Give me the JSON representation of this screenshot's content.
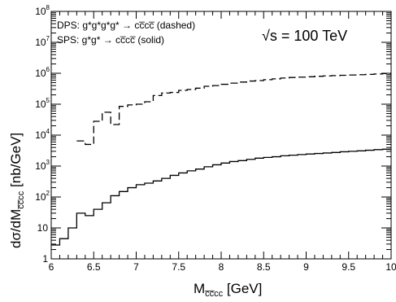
{
  "chart_data": {
    "type": "line",
    "title": "",
    "xlabel": {
      "main": "M",
      "sub": "c̅c̅cc",
      "unit": "[GeV]"
    },
    "ylabel": {
      "main": "dσ/dM",
      "sub": "c̅c̅cc",
      "unit": "[nb/GeV]"
    },
    "xlim": [
      6,
      10
    ],
    "ylim": [
      1,
      100000000
    ],
    "yscale": "log",
    "x_ticks": [
      "6",
      "6.5",
      "7",
      "7.5",
      "8",
      "8.5",
      "9",
      "9.5",
      "10"
    ],
    "y_ticks": [
      {
        "base": "1",
        "exp": ""
      },
      {
        "base": "10",
        "exp": ""
      },
      {
        "base": "10",
        "exp": "2"
      },
      {
        "base": "10",
        "exp": "3"
      },
      {
        "base": "10",
        "exp": "4"
      },
      {
        "base": "10",
        "exp": "5"
      },
      {
        "base": "10",
        "exp": "6"
      },
      {
        "base": "10",
        "exp": "7"
      },
      {
        "base": "10",
        "exp": "8"
      }
    ],
    "legend": [
      {
        "text": "DPS: g*g*g*g* → cc̅cc̅ (dashed)",
        "style": "dashed"
      },
      {
        "text": "SPS: g*g* → cc̅cc̅ (solid)",
        "style": "solid"
      }
    ],
    "annotation": {
      "text": "√s = 100 TeV"
    },
    "series": [
      {
        "style": "dashed",
        "bin_edges": [
          6.3,
          6.4,
          6.5,
          6.6,
          6.7,
          6.8,
          6.9,
          7.0,
          7.1,
          7.2,
          7.3,
          7.4,
          7.5,
          7.6,
          7.7,
          7.8,
          7.9,
          8.0,
          8.1,
          8.2,
          8.3,
          8.4,
          8.5,
          8.6,
          8.7,
          8.8,
          8.9,
          9.0,
          9.1,
          9.2,
          9.3,
          9.4,
          9.5,
          9.6,
          9.7,
          9.8,
          9.9,
          10.0
        ],
        "values": [
          6500,
          5000,
          28000,
          55000,
          22000,
          85000,
          95000,
          100000,
          120000,
          190000,
          230000,
          240000,
          280000,
          300000,
          330000,
          380000,
          400000,
          440000,
          480000,
          520000,
          560000,
          580000,
          620000,
          660000,
          700000,
          730000,
          750000,
          770000,
          800000,
          820000,
          840000,
          860000,
          880000,
          900000,
          920000,
          950000,
          980000
        ]
      },
      {
        "style": "solid",
        "bin_edges": [
          6.0,
          6.1,
          6.2,
          6.3,
          6.4,
          6.5,
          6.6,
          6.7,
          6.8,
          6.9,
          7.0,
          7.1,
          7.2,
          7.3,
          7.4,
          7.5,
          7.6,
          7.7,
          7.8,
          7.9,
          8.0,
          8.1,
          8.2,
          8.3,
          8.4,
          8.5,
          8.6,
          8.7,
          8.8,
          8.9,
          9.0,
          9.1,
          9.2,
          9.3,
          9.4,
          9.5,
          9.6,
          9.7,
          9.8,
          9.9,
          10.0
        ],
        "values": [
          2.8,
          4.5,
          10,
          30,
          25,
          40,
          65,
          110,
          150,
          200,
          250,
          280,
          330,
          400,
          500,
          600,
          700,
          800,
          950,
          1100,
          1250,
          1400,
          1500,
          1650,
          1800,
          1900,
          2000,
          2150,
          2250,
          2350,
          2450,
          2550,
          2650,
          2750,
          2900,
          3000,
          3100,
          3250,
          3400,
          3500
        ]
      }
    ]
  }
}
